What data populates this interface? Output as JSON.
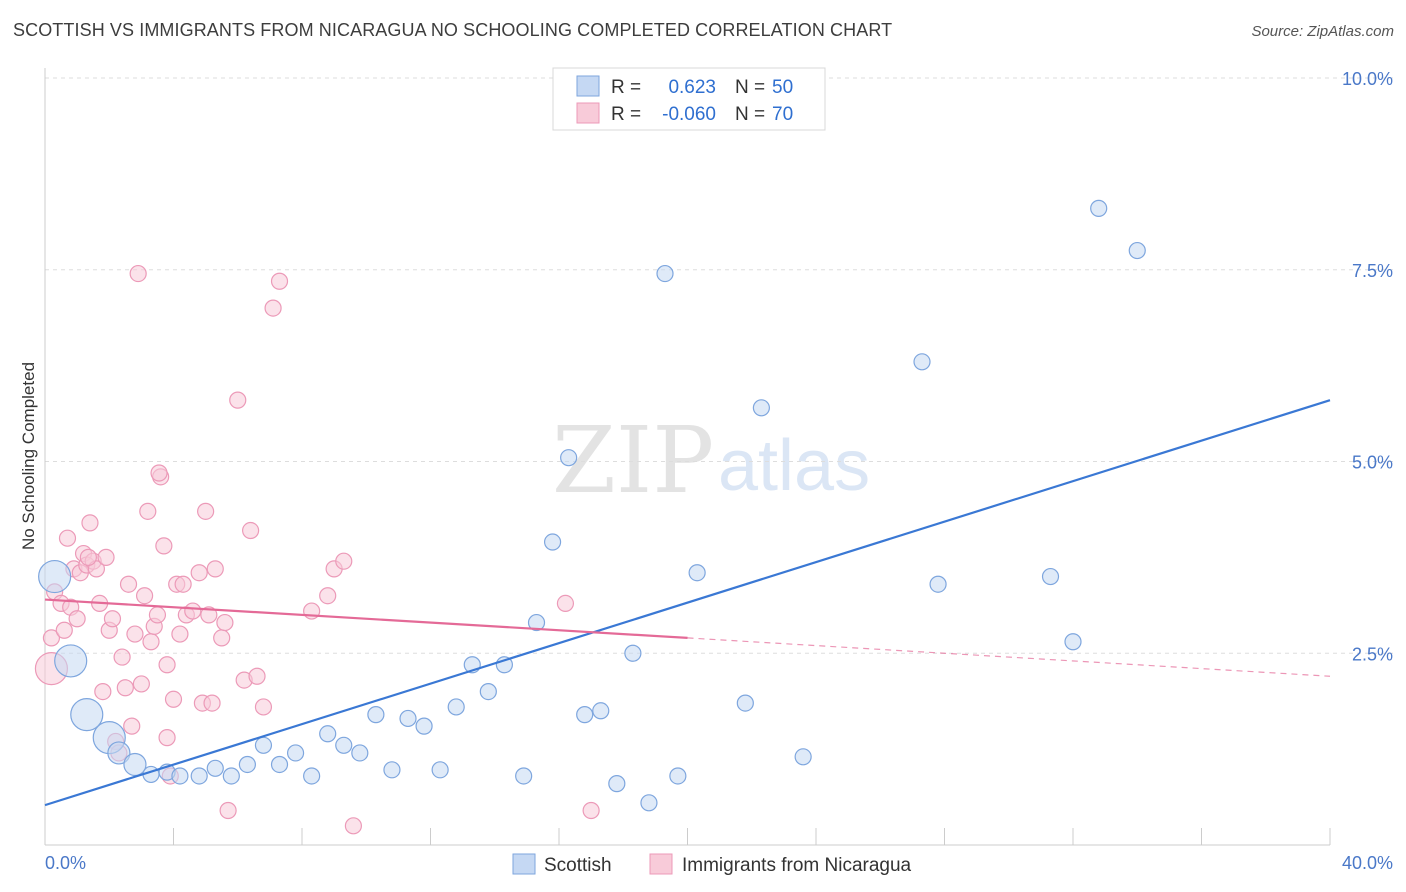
{
  "header": {
    "title": "SCOTTISH VS IMMIGRANTS FROM NICARAGUA NO SCHOOLING COMPLETED CORRELATION CHART",
    "source": "Source: ZipAtlas.com"
  },
  "watermark": {
    "zip": "ZIP",
    "atlas": "atlas"
  },
  "legend": {
    "rows": [
      {
        "r_label": "R =",
        "r_value": "0.623",
        "n_label": "N =",
        "n_value": "50"
      },
      {
        "r_label": "R =",
        "r_value": "-0.060",
        "n_label": "N =",
        "n_value": "70"
      }
    ]
  },
  "bottom_legend": {
    "items": [
      {
        "label": "Scottish"
      },
      {
        "label": "Immigrants from Nicaragua"
      }
    ]
  },
  "colors": {
    "blue": "#3a78d4",
    "blue_fill": "#c5d8f3",
    "blue_stroke": "#7ea6de",
    "pink": "#e46a97",
    "pink_fill": "#f8cbd9",
    "pink_stroke": "#ec9ab8",
    "grid": "#dddddd"
  },
  "chart_data": {
    "type": "scatter",
    "title": "SCOTTISH VS IMMIGRANTS FROM NICARAGUA NO SCHOOLING COMPLETED CORRELATION CHART",
    "xlabel": "",
    "ylabel": "No Schooling Completed",
    "xlim": [
      0,
      40
    ],
    "ylim": [
      0,
      10
    ],
    "x_tick_labels": [
      "0.0%",
      "40.0%"
    ],
    "y_ticks": [
      2.5,
      5.0,
      7.5,
      10.0
    ],
    "y_tick_labels": [
      "2.5%",
      "5.0%",
      "7.5%",
      "10.0%"
    ],
    "series": [
      {
        "name": "Scottish",
        "color": "blue",
        "r": 0.623,
        "n": 50,
        "trend": {
          "x": [
            0,
            40
          ],
          "y": [
            0.52,
            5.8
          ]
        },
        "points": [
          {
            "x": 0.3,
            "y": 3.5,
            "s": 3
          },
          {
            "x": 0.8,
            "y": 2.4,
            "s": 3
          },
          {
            "x": 1.3,
            "y": 1.7,
            "s": 3
          },
          {
            "x": 2.0,
            "y": 1.4,
            "s": 3
          },
          {
            "x": 2.3,
            "y": 1.2,
            "s": 2
          },
          {
            "x": 2.8,
            "y": 1.05,
            "s": 2
          },
          {
            "x": 3.3,
            "y": 0.92,
            "s": 1
          },
          {
            "x": 3.8,
            "y": 0.95,
            "s": 1
          },
          {
            "x": 4.2,
            "y": 0.9,
            "s": 1
          },
          {
            "x": 4.8,
            "y": 0.9,
            "s": 1
          },
          {
            "x": 5.3,
            "y": 1.0,
            "s": 1
          },
          {
            "x": 5.8,
            "y": 0.9,
            "s": 1
          },
          {
            "x": 6.3,
            "y": 1.05,
            "s": 1
          },
          {
            "x": 6.8,
            "y": 1.3,
            "s": 1
          },
          {
            "x": 7.3,
            "y": 1.05,
            "s": 1
          },
          {
            "x": 7.8,
            "y": 1.2,
            "s": 1
          },
          {
            "x": 8.3,
            "y": 0.9,
            "s": 1
          },
          {
            "x": 8.8,
            "y": 1.45,
            "s": 1
          },
          {
            "x": 9.3,
            "y": 1.3,
            "s": 1
          },
          {
            "x": 9.8,
            "y": 1.2,
            "s": 1
          },
          {
            "x": 10.3,
            "y": 1.7,
            "s": 1
          },
          {
            "x": 10.8,
            "y": 0.98,
            "s": 1
          },
          {
            "x": 11.3,
            "y": 1.65,
            "s": 1
          },
          {
            "x": 11.8,
            "y": 1.55,
            "s": 1
          },
          {
            "x": 12.3,
            "y": 0.98,
            "s": 1
          },
          {
            "x": 12.8,
            "y": 1.8,
            "s": 1
          },
          {
            "x": 13.3,
            "y": 2.35,
            "s": 1
          },
          {
            "x": 13.8,
            "y": 2.0,
            "s": 1
          },
          {
            "x": 14.3,
            "y": 2.35,
            "s": 1
          },
          {
            "x": 14.9,
            "y": 0.9,
            "s": 1
          },
          {
            "x": 15.3,
            "y": 2.9,
            "s": 1
          },
          {
            "x": 15.8,
            "y": 3.95,
            "s": 1
          },
          {
            "x": 16.3,
            "y": 5.05,
            "s": 1
          },
          {
            "x": 16.8,
            "y": 1.7,
            "s": 1
          },
          {
            "x": 17.3,
            "y": 1.75,
            "s": 1
          },
          {
            "x": 17.8,
            "y": 0.8,
            "s": 1
          },
          {
            "x": 18.3,
            "y": 2.5,
            "s": 1
          },
          {
            "x": 18.8,
            "y": 0.55,
            "s": 1
          },
          {
            "x": 19.3,
            "y": 7.45,
            "s": 1
          },
          {
            "x": 19.7,
            "y": 0.9,
            "s": 1
          },
          {
            "x": 20.3,
            "y": 3.55,
            "s": 1
          },
          {
            "x": 21.8,
            "y": 1.85,
            "s": 1
          },
          {
            "x": 22.3,
            "y": 5.7,
            "s": 1
          },
          {
            "x": 23.6,
            "y": 1.15,
            "s": 1
          },
          {
            "x": 27.3,
            "y": 6.3,
            "s": 1
          },
          {
            "x": 27.8,
            "y": 3.4,
            "s": 1
          },
          {
            "x": 31.3,
            "y": 3.5,
            "s": 1
          },
          {
            "x": 32.0,
            "y": 2.65,
            "s": 1
          },
          {
            "x": 32.8,
            "y": 8.3,
            "s": 1
          },
          {
            "x": 34.0,
            "y": 7.75,
            "s": 1
          }
        ]
      },
      {
        "name": "Immigrants from Nicaragua",
        "color": "pink",
        "r": -0.06,
        "n": 70,
        "trend": {
          "x": [
            0,
            20
          ],
          "y": [
            3.2,
            2.7
          ]
        },
        "trend_dashed": {
          "x": [
            20,
            40
          ],
          "y": [
            2.7,
            2.2
          ]
        },
        "points": [
          {
            "x": 0.2,
            "y": 2.3,
            "s": 3
          },
          {
            "x": 0.2,
            "y": 2.7,
            "s": 1
          },
          {
            "x": 0.3,
            "y": 3.3,
            "s": 1
          },
          {
            "x": 0.5,
            "y": 3.15,
            "s": 1
          },
          {
            "x": 0.6,
            "y": 2.8,
            "s": 1
          },
          {
            "x": 0.7,
            "y": 4.0,
            "s": 1
          },
          {
            "x": 0.8,
            "y": 3.1,
            "s": 1
          },
          {
            "x": 0.9,
            "y": 3.6,
            "s": 1
          },
          {
            "x": 1.0,
            "y": 2.95,
            "s": 1
          },
          {
            "x": 1.1,
            "y": 3.55,
            "s": 1
          },
          {
            "x": 1.2,
            "y": 3.8,
            "s": 1
          },
          {
            "x": 1.3,
            "y": 3.65,
            "s": 1
          },
          {
            "x": 1.4,
            "y": 4.2,
            "s": 1
          },
          {
            "x": 1.5,
            "y": 3.7,
            "s": 1
          },
          {
            "x": 1.6,
            "y": 3.6,
            "s": 1
          },
          {
            "x": 1.7,
            "y": 3.15,
            "s": 1
          },
          {
            "x": 1.8,
            "y": 2.0,
            "s": 1
          },
          {
            "x": 1.9,
            "y": 3.75,
            "s": 1
          },
          {
            "x": 2.0,
            "y": 2.8,
            "s": 1
          },
          {
            "x": 2.1,
            "y": 2.95,
            "s": 1
          },
          {
            "x": 2.2,
            "y": 1.35,
            "s": 1
          },
          {
            "x": 2.3,
            "y": 1.2,
            "s": 1
          },
          {
            "x": 2.4,
            "y": 2.45,
            "s": 1
          },
          {
            "x": 2.5,
            "y": 2.05,
            "s": 1
          },
          {
            "x": 2.6,
            "y": 3.4,
            "s": 1
          },
          {
            "x": 2.7,
            "y": 1.55,
            "s": 1
          },
          {
            "x": 2.8,
            "y": 2.75,
            "s": 1
          },
          {
            "x": 2.9,
            "y": 7.45,
            "s": 1
          },
          {
            "x": 3.0,
            "y": 2.1,
            "s": 1
          },
          {
            "x": 3.1,
            "y": 3.25,
            "s": 1
          },
          {
            "x": 3.2,
            "y": 4.35,
            "s": 1
          },
          {
            "x": 3.3,
            "y": 2.65,
            "s": 1
          },
          {
            "x": 3.4,
            "y": 2.85,
            "s": 1
          },
          {
            "x": 3.5,
            "y": 3.0,
            "s": 1
          },
          {
            "x": 3.6,
            "y": 4.8,
            "s": 1
          },
          {
            "x": 3.7,
            "y": 3.9,
            "s": 1
          },
          {
            "x": 3.8,
            "y": 1.4,
            "s": 1
          },
          {
            "x": 3.8,
            "y": 2.35,
            "s": 1
          },
          {
            "x": 3.9,
            "y": 0.9,
            "s": 1
          },
          {
            "x": 4.0,
            "y": 1.9,
            "s": 1
          },
          {
            "x": 4.1,
            "y": 3.4,
            "s": 1
          },
          {
            "x": 4.2,
            "y": 2.75,
            "s": 1
          },
          {
            "x": 4.3,
            "y": 3.4,
            "s": 1
          },
          {
            "x": 4.4,
            "y": 3.0,
            "s": 1
          },
          {
            "x": 4.6,
            "y": 3.05,
            "s": 1
          },
          {
            "x": 4.8,
            "y": 3.55,
            "s": 1
          },
          {
            "x": 4.9,
            "y": 1.85,
            "s": 1
          },
          {
            "x": 5.0,
            "y": 4.35,
            "s": 1
          },
          {
            "x": 5.1,
            "y": 3.0,
            "s": 1
          },
          {
            "x": 5.2,
            "y": 1.85,
            "s": 1
          },
          {
            "x": 5.3,
            "y": 3.6,
            "s": 1
          },
          {
            "x": 5.5,
            "y": 2.7,
            "s": 1
          },
          {
            "x": 5.6,
            "y": 2.9,
            "s": 1
          },
          {
            "x": 5.7,
            "y": 0.45,
            "s": 1
          },
          {
            "x": 6.0,
            "y": 5.8,
            "s": 1
          },
          {
            "x": 6.2,
            "y": 2.15,
            "s": 1
          },
          {
            "x": 6.4,
            "y": 4.1,
            "s": 1
          },
          {
            "x": 6.6,
            "y": 2.2,
            "s": 1
          },
          {
            "x": 6.8,
            "y": 1.8,
            "s": 1
          },
          {
            "x": 7.1,
            "y": 7.0,
            "s": 1
          },
          {
            "x": 7.3,
            "y": 7.35,
            "s": 1
          },
          {
            "x": 8.3,
            "y": 3.05,
            "s": 1
          },
          {
            "x": 8.8,
            "y": 3.25,
            "s": 1
          },
          {
            "x": 9.0,
            "y": 3.6,
            "s": 1
          },
          {
            "x": 9.3,
            "y": 3.7,
            "s": 1
          },
          {
            "x": 9.6,
            "y": 0.25,
            "s": 1
          },
          {
            "x": 16.2,
            "y": 3.15,
            "s": 1
          },
          {
            "x": 17.0,
            "y": 0.45,
            "s": 1
          },
          {
            "x": 3.55,
            "y": 4.85,
            "s": 1
          },
          {
            "x": 1.35,
            "y": 3.75,
            "s": 1
          }
        ]
      }
    ]
  }
}
